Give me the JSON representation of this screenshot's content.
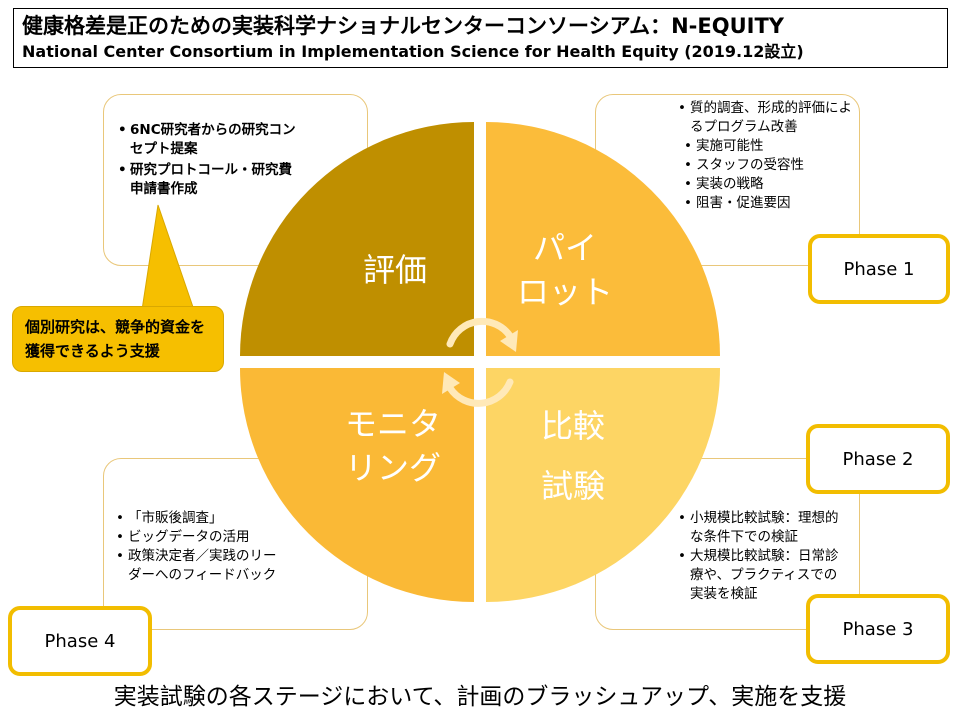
{
  "title": {
    "ja": "健康格差是正のための実装科学ナショナルセンターコンソーシアム：N-EQUITY",
    "en": "National Center Consortium in Implementation Science for Health Equity (2019.12設立)"
  },
  "quadrants": [
    {
      "id": "evaluation",
      "label_lines": [
        "評価"
      ],
      "color": "#bf8f00"
    },
    {
      "id": "pilot",
      "label_lines": [
        "パイ",
        "ロット"
      ],
      "color": "#fbbc3a"
    },
    {
      "id": "monitoring",
      "label_lines": [
        "モニタ",
        "リング"
      ],
      "color": "#fab936"
    },
    {
      "id": "comparative",
      "label_lines": [
        "比較",
        "試験"
      ],
      "color": "#fdd564"
    }
  ],
  "panels": {
    "top_left": {
      "items": [
        "6NC研究者からの研究コンセプト提案",
        "研究プロトコール・研究費申請書作成"
      ]
    },
    "top_right": {
      "items": [
        "質的調査、形成的評価によるプログラム改善"
      ],
      "subitems": [
        "実施可能性",
        "スタッフの受容性",
        "実装の戦略",
        "阻害・促進要因"
      ]
    },
    "bottom_left": {
      "items": [
        "「市販後調査」",
        "ビッグデータの活用",
        "政策決定者／実践のリーダーへのフィードバック"
      ]
    },
    "bottom_right": {
      "items": [
        "小規模比較試験：理想的な条件下での検証",
        "大規模比較試験：日常診療や、プラクティスでの実装を検証"
      ]
    }
  },
  "callout": {
    "text": "個別研究は、競争的資金を獲得できるよう支援",
    "color": "#f6bf00"
  },
  "phases": {
    "p1": "Phase 1",
    "p2": "Phase 2",
    "p3": "Phase 3",
    "p4": "Phase 4"
  },
  "footer": "実装試験の各ステージにおいて、計画のブラッシュアップ、実施を支援",
  "colors": {
    "phase_border": "#f2bd00",
    "panel_border": "#e9c77a"
  },
  "icons": {
    "cycle": "cycle-arrows-icon"
  }
}
